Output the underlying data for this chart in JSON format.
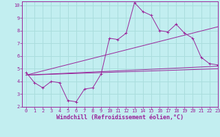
{
  "xlabel": "Windchill (Refroidissement éolien,°C)",
  "xlim": [
    -0.5,
    23
  ],
  "ylim": [
    2,
    10.3
  ],
  "xticks": [
    0,
    1,
    2,
    3,
    4,
    5,
    6,
    7,
    8,
    9,
    10,
    11,
    12,
    13,
    14,
    15,
    16,
    17,
    18,
    19,
    20,
    21,
    22,
    23
  ],
  "yticks": [
    2,
    3,
    4,
    5,
    6,
    7,
    8,
    9,
    10
  ],
  "background_color": "#c2eef0",
  "grid_color": "#aadddd",
  "line_color": "#992299",
  "line1_x": [
    0,
    1,
    2,
    3,
    4,
    5,
    6,
    7,
    8,
    9,
    10,
    11,
    12,
    13,
    14,
    15,
    16,
    17,
    18,
    19,
    20,
    21,
    22,
    23
  ],
  "line1_y": [
    4.7,
    3.9,
    3.5,
    4.0,
    3.9,
    2.5,
    2.4,
    3.4,
    3.5,
    4.6,
    7.4,
    7.3,
    7.8,
    10.2,
    9.5,
    9.2,
    8.0,
    7.9,
    8.5,
    7.8,
    7.4,
    5.9,
    5.4,
    5.3
  ],
  "trend1_x": [
    0,
    23
  ],
  "trend1_y": [
    4.5,
    5.2
  ],
  "trend2_x": [
    0,
    23
  ],
  "trend2_y": [
    4.5,
    5.0
  ],
  "trend3_x": [
    0,
    23
  ],
  "trend3_y": [
    4.5,
    8.3
  ],
  "tick_font_size": 5.0,
  "xlabel_font_size": 6.0
}
